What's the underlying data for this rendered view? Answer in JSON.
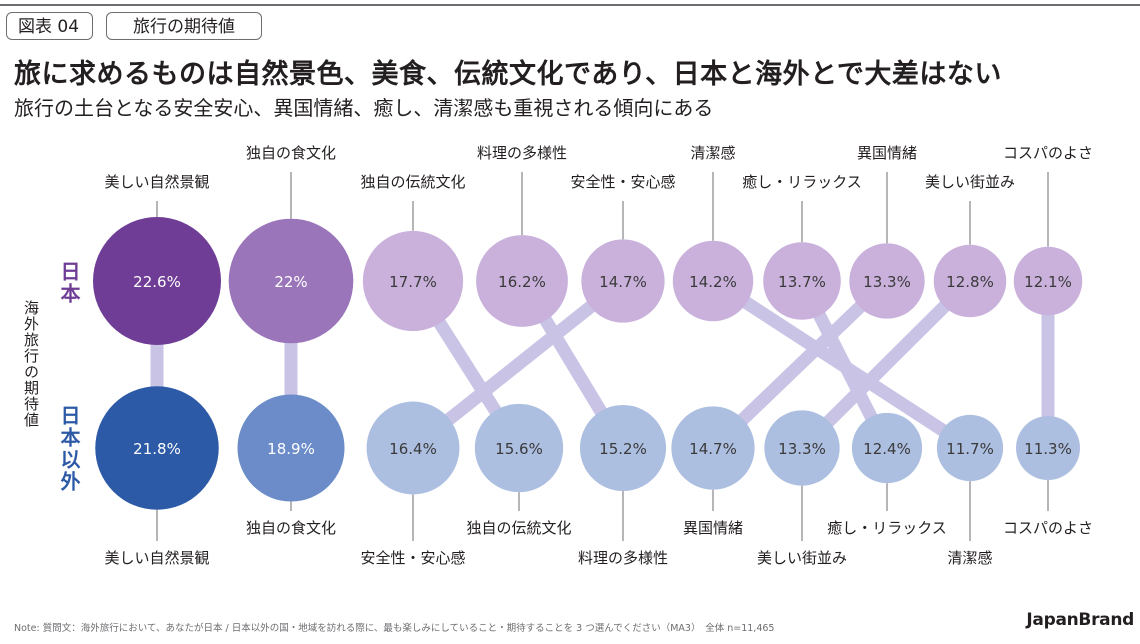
{
  "header": {
    "figure_label": "図表 04",
    "topic": "旅行の期待値",
    "title": "旅に求めるものは自然景色、美食、伝統文化であり、日本と海外とで大差はない",
    "subtitle": "旅行の土台となる安全安心、異国情緒、癒し、清潔感も重視される傾向にある"
  },
  "axis_title": "海外旅行の期待値",
  "footer": {
    "note": "Note: 質問文：海外旅行において、あなたが日本 / 日本以外の国・地域を訪れる際に、最も楽しみにしていること・期待することを 3 つ選んでください（MA3）　全体 n=11,465",
    "brand": "JapanBrand"
  },
  "colors": {
    "japan_top": "#6f3d96",
    "japan_second": "#9a75ba",
    "japan_rest": "#c9b1dc",
    "foreign_top": "#2d5aa6",
    "foreign_second": "#6b8cc8",
    "foreign_rest": "#adbfe1",
    "connector": "#c9c3e5",
    "leader": "#6d6e71"
  },
  "chart_data": {
    "type": "ranked-bubble-comparison",
    "unit": "%",
    "groups": [
      {
        "name": "日本",
        "items": [
          {
            "label": "美しい自然景観",
            "value": 22.6
          },
          {
            "label": "独自の食文化",
            "value": 22
          },
          {
            "label": "独自の伝統文化",
            "value": 17.7
          },
          {
            "label": "料理の多様性",
            "value": 16.2
          },
          {
            "label": "安全性・安心感",
            "value": 14.7
          },
          {
            "label": "清潔感",
            "value": 14.2
          },
          {
            "label": "癒し・リラックス",
            "value": 13.7
          },
          {
            "label": "異国情緒",
            "value": 13.3
          },
          {
            "label": "美しい街並み",
            "value": 12.8
          },
          {
            "label": "コスパのよさ",
            "value": 12.1
          }
        ]
      },
      {
        "name": "日本以外",
        "items": [
          {
            "label": "美しい自然景観",
            "value": 21.8
          },
          {
            "label": "独自の食文化",
            "value": 18.9
          },
          {
            "label": "安全性・安心感",
            "value": 16.4
          },
          {
            "label": "独自の伝統文化",
            "value": 15.6
          },
          {
            "label": "料理の多様性",
            "value": 15.2
          },
          {
            "label": "異国情緒",
            "value": 14.7
          },
          {
            "label": "美しい街並み",
            "value": 13.3
          },
          {
            "label": "癒し・リラックス",
            "value": 12.4
          },
          {
            "label": "清潔感",
            "value": 11.7
          },
          {
            "label": "コスパのよさ",
            "value": 11.3
          }
        ]
      }
    ]
  }
}
